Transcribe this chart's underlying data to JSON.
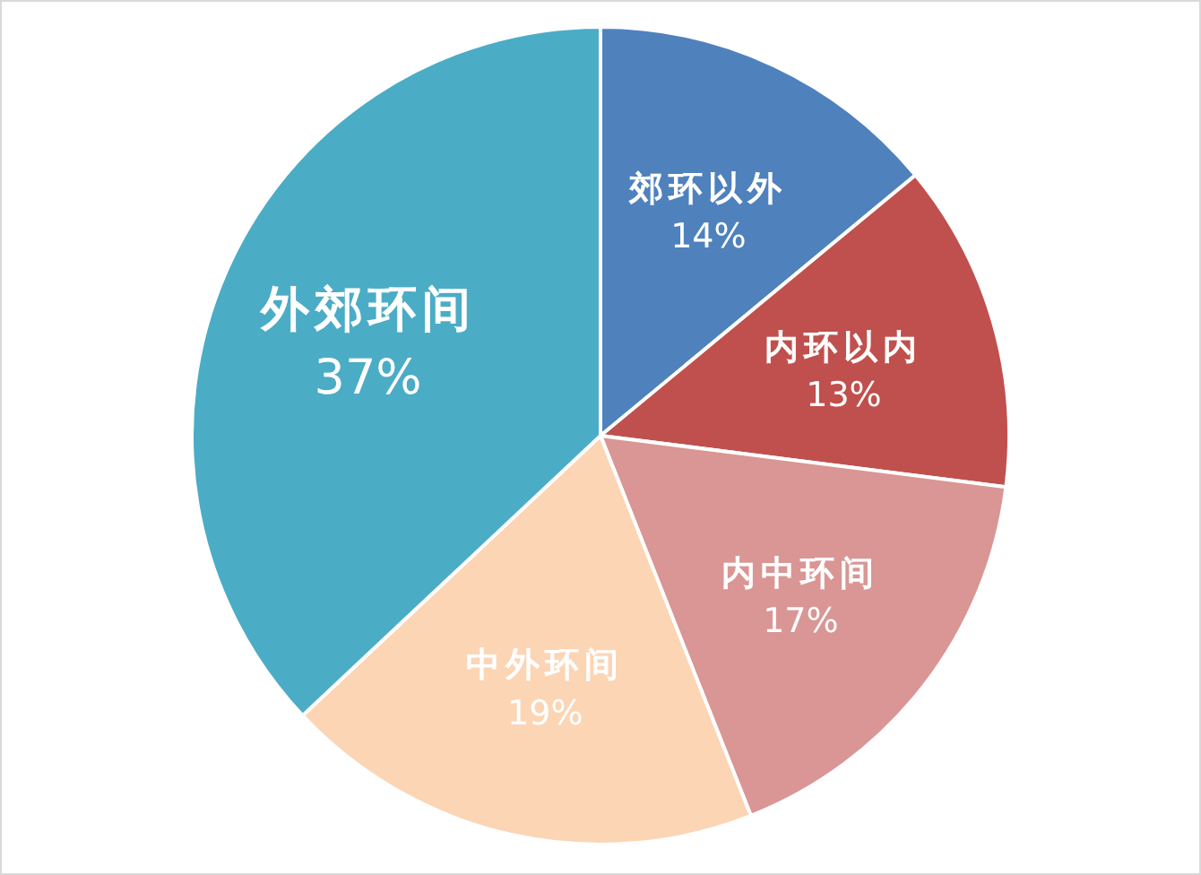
{
  "chart_data": {
    "type": "pie",
    "categories": [
      "郊环以外",
      "内环以内",
      "内中环间",
      "中外环间",
      "外郊环间"
    ],
    "values": [
      14,
      13,
      17,
      19,
      37
    ],
    "colors": [
      "#4f81bd",
      "#c0504d",
      "#d99694",
      "#fcd5b5",
      "#4bacc6"
    ],
    "value_labels": [
      "14%",
      "13%",
      "17%",
      "19%",
      "37%"
    ]
  }
}
